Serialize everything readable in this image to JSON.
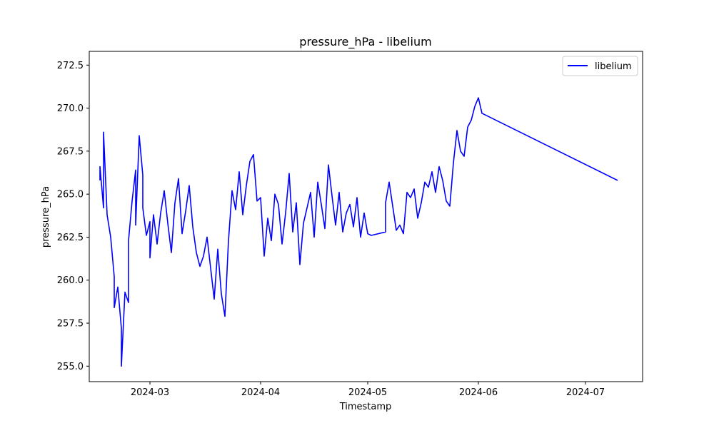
{
  "chart_data": {
    "type": "line",
    "title": "pressure_hPa - libelium",
    "xlabel": "Timestamp",
    "ylabel": "pressure_hPa",
    "xlim": [
      "2024-02-13",
      "2024-07-17"
    ],
    "ylim": [
      254.1,
      273.3
    ],
    "x_ticks": [
      "2024-03-01",
      "2024-04-01",
      "2024-05-01",
      "2024-06-01",
      "2024-07-01"
    ],
    "x_tick_labels": [
      "2024-03",
      "2024-04",
      "2024-05",
      "2024-06",
      "2024-07"
    ],
    "y_ticks": [
      255.0,
      257.5,
      260.0,
      262.5,
      265.0,
      267.5,
      270.0,
      272.5
    ],
    "y_tick_labels": [
      "255.0",
      "257.5",
      "260.0",
      "262.5",
      "265.0",
      "267.5",
      "270.0",
      "272.5"
    ],
    "grid": false,
    "legend_position": "top-right",
    "series": [
      {
        "name": "libelium",
        "color": "#0000ff",
        "x": [
          "2024-02-16",
          "2024-02-16",
          "2024-02-17",
          "2024-02-17",
          "2024-02-18",
          "2024-02-19",
          "2024-02-20",
          "2024-02-20",
          "2024-02-21",
          "2024-02-22",
          "2024-02-22",
          "2024-02-23",
          "2024-02-24",
          "2024-02-24",
          "2024-02-25",
          "2024-02-26",
          "2024-02-26",
          "2024-02-27",
          "2024-02-28",
          "2024-02-28",
          "2024-02-29",
          "2024-03-01",
          "2024-03-01",
          "2024-03-02",
          "2024-03-03",
          "2024-03-04",
          "2024-03-05",
          "2024-03-06",
          "2024-03-07",
          "2024-03-08",
          "2024-03-09",
          "2024-03-10",
          "2024-03-11",
          "2024-03-12",
          "2024-03-13",
          "2024-03-14",
          "2024-03-15",
          "2024-03-16",
          "2024-03-17",
          "2024-03-18",
          "2024-03-19",
          "2024-03-20",
          "2024-03-21",
          "2024-03-22",
          "2024-03-23",
          "2024-03-24",
          "2024-03-25",
          "2024-03-26",
          "2024-03-27",
          "2024-03-28",
          "2024-03-29",
          "2024-03-30",
          "2024-03-31",
          "2024-04-01",
          "2024-04-02",
          "2024-04-03",
          "2024-04-04",
          "2024-04-05",
          "2024-04-06",
          "2024-04-07",
          "2024-04-08",
          "2024-04-09",
          "2024-04-10",
          "2024-04-11",
          "2024-04-12",
          "2024-04-13",
          "2024-04-14",
          "2024-04-15",
          "2024-04-16",
          "2024-04-17",
          "2024-04-18",
          "2024-04-19",
          "2024-04-20",
          "2024-04-21",
          "2024-04-22",
          "2024-04-23",
          "2024-04-24",
          "2024-04-25",
          "2024-04-26",
          "2024-04-27",
          "2024-04-28",
          "2024-04-29",
          "2024-04-30",
          "2024-05-01",
          "2024-05-02",
          "2024-05-06",
          "2024-05-06",
          "2024-05-07",
          "2024-05-08",
          "2024-05-09",
          "2024-05-10",
          "2024-05-11",
          "2024-05-12",
          "2024-05-13",
          "2024-05-14",
          "2024-05-15",
          "2024-05-16",
          "2024-05-17",
          "2024-05-18",
          "2024-05-19",
          "2024-05-20",
          "2024-05-21",
          "2024-05-22",
          "2024-05-23",
          "2024-05-24",
          "2024-05-25",
          "2024-05-26",
          "2024-05-27",
          "2024-05-28",
          "2024-05-29",
          "2024-05-30",
          "2024-05-31",
          "2024-06-01",
          "2024-06-02",
          "2024-07-10",
          "2024-07-10"
        ],
        "y": [
          265.8,
          266.6,
          264.2,
          268.6,
          263.8,
          262.5,
          260.2,
          258.4,
          259.6,
          257.2,
          255.0,
          259.3,
          258.7,
          262.3,
          264.6,
          266.4,
          263.2,
          268.4,
          266.1,
          264.2,
          262.6,
          263.4,
          261.3,
          263.8,
          262.1,
          263.9,
          265.2,
          263.3,
          261.6,
          264.5,
          265.9,
          262.7,
          264.0,
          265.5,
          263.1,
          261.6,
          260.8,
          261.4,
          262.5,
          260.7,
          258.9,
          261.8,
          259.2,
          257.9,
          262.3,
          265.2,
          264.1,
          266.3,
          263.8,
          265.5,
          266.9,
          267.3,
          264.6,
          264.8,
          261.4,
          263.6,
          262.3,
          265.0,
          264.4,
          262.1,
          263.9,
          266.2,
          262.8,
          264.5,
          260.9,
          263.3,
          264.2,
          265.1,
          262.5,
          265.7,
          264.4,
          263.0,
          266.7,
          264.9,
          263.2,
          265.1,
          262.8,
          263.9,
          264.4,
          263.1,
          264.8,
          262.5,
          263.9,
          262.7,
          262.6,
          262.8,
          264.5,
          265.7,
          264.3,
          262.9,
          263.2,
          262.7,
          265.1,
          264.8,
          265.3,
          263.6,
          264.5,
          265.7,
          265.4,
          266.3,
          265.1,
          266.6,
          265.8,
          264.6,
          264.3,
          266.8,
          268.7,
          267.5,
          267.2,
          268.9,
          269.3,
          270.1,
          270.6,
          269.7,
          265.8,
          265.8
        ]
      }
    ]
  }
}
